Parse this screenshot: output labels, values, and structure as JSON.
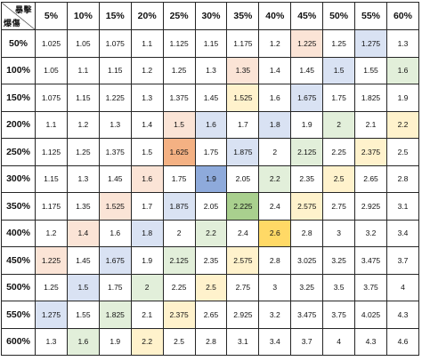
{
  "corner": {
    "top_label": "暴擊",
    "bottom_label": "爆傷"
  },
  "columns": [
    "5%",
    "10%",
    "15%",
    "20%",
    "25%",
    "30%",
    "35%",
    "40%",
    "45%",
    "50%",
    "55%",
    "60%"
  ],
  "colors": {
    "pink": "#fbe4d6",
    "orange": "#f4b183",
    "blue": "#d9e2f3",
    "darkblue": "#8eaadb",
    "green": "#e2efda",
    "darkgreen": "#a9d08e",
    "yellow": "#fff2cc",
    "darkyellow": "#ffd966"
  },
  "rows": [
    {
      "label": "50%",
      "cells": [
        {
          "v": "1.025"
        },
        {
          "v": "1.05"
        },
        {
          "v": "1.075"
        },
        {
          "v": "1.1"
        },
        {
          "v": "1.125"
        },
        {
          "v": "1.15"
        },
        {
          "v": "1.175"
        },
        {
          "v": "1.2"
        },
        {
          "v": "1.225",
          "c": "pink"
        },
        {
          "v": "1.25"
        },
        {
          "v": "1.275",
          "c": "blue"
        },
        {
          "v": "1.3"
        }
      ]
    },
    {
      "label": "100%",
      "cells": [
        {
          "v": "1.05"
        },
        {
          "v": "1.1"
        },
        {
          "v": "1.15"
        },
        {
          "v": "1.2"
        },
        {
          "v": "1.25"
        },
        {
          "v": "1.3"
        },
        {
          "v": "1.35",
          "c": "pink"
        },
        {
          "v": "1.4"
        },
        {
          "v": "1.45"
        },
        {
          "v": "1.5",
          "c": "blue"
        },
        {
          "v": "1.55"
        },
        {
          "v": "1.6",
          "c": "green"
        }
      ]
    },
    {
      "label": "150%",
      "cells": [
        {
          "v": "1.075"
        },
        {
          "v": "1.15"
        },
        {
          "v": "1.225"
        },
        {
          "v": "1.3"
        },
        {
          "v": "1.375"
        },
        {
          "v": "1.45"
        },
        {
          "v": "1.525",
          "c": "yellow"
        },
        {
          "v": "1.6"
        },
        {
          "v": "1.675",
          "c": "blue"
        },
        {
          "v": "1.75"
        },
        {
          "v": "1.825"
        },
        {
          "v": "1.9"
        }
      ]
    },
    {
      "label": "200%",
      "cells": [
        {
          "v": "1.1"
        },
        {
          "v": "1.2"
        },
        {
          "v": "1.3"
        },
        {
          "v": "1.4"
        },
        {
          "v": "1.5",
          "c": "pink"
        },
        {
          "v": "1.6",
          "c": "blue"
        },
        {
          "v": "1.7"
        },
        {
          "v": "1.8",
          "c": "blue"
        },
        {
          "v": "1.9"
        },
        {
          "v": "2",
          "c": "green"
        },
        {
          "v": "2.1"
        },
        {
          "v": "2.2",
          "c": "yellow"
        }
      ]
    },
    {
      "label": "250%",
      "cells": [
        {
          "v": "1.125"
        },
        {
          "v": "1.25"
        },
        {
          "v": "1.375"
        },
        {
          "v": "1.5"
        },
        {
          "v": "1.625",
          "c": "orange"
        },
        {
          "v": "1.75"
        },
        {
          "v": "1.875",
          "c": "blue"
        },
        {
          "v": "2"
        },
        {
          "v": "2.125",
          "c": "green"
        },
        {
          "v": "2.25"
        },
        {
          "v": "2.375",
          "c": "yellow"
        },
        {
          "v": "2.5"
        }
      ]
    },
    {
      "label": "300%",
      "cells": [
        {
          "v": "1.15"
        },
        {
          "v": "1.3"
        },
        {
          "v": "1.45"
        },
        {
          "v": "1.6",
          "c": "pink"
        },
        {
          "v": "1.75"
        },
        {
          "v": "1.9",
          "c": "darkblue"
        },
        {
          "v": "2.05"
        },
        {
          "v": "2.2",
          "c": "green"
        },
        {
          "v": "2.35"
        },
        {
          "v": "2.5",
          "c": "yellow"
        },
        {
          "v": "2.65"
        },
        {
          "v": "2.8"
        }
      ]
    },
    {
      "label": "350%",
      "cells": [
        {
          "v": "1.175"
        },
        {
          "v": "1.35"
        },
        {
          "v": "1.525",
          "c": "pink"
        },
        {
          "v": "1.7"
        },
        {
          "v": "1.875",
          "c": "blue"
        },
        {
          "v": "2.05"
        },
        {
          "v": "2.225",
          "c": "darkgreen"
        },
        {
          "v": "2.4"
        },
        {
          "v": "2.575",
          "c": "yellow"
        },
        {
          "v": "2.75"
        },
        {
          "v": "2.925"
        },
        {
          "v": "3.1"
        }
      ]
    },
    {
      "label": "400%",
      "cells": [
        {
          "v": "1.2"
        },
        {
          "v": "1.4",
          "c": "pink"
        },
        {
          "v": "1.6"
        },
        {
          "v": "1.8",
          "c": "blue"
        },
        {
          "v": "2"
        },
        {
          "v": "2.2",
          "c": "green"
        },
        {
          "v": "2.4"
        },
        {
          "v": "2.6",
          "c": "darkyellow"
        },
        {
          "v": "2.8"
        },
        {
          "v": "3"
        },
        {
          "v": "3.2"
        },
        {
          "v": "3.4"
        }
      ]
    },
    {
      "label": "450%",
      "cells": [
        {
          "v": "1.225",
          "c": "pink"
        },
        {
          "v": "1.45"
        },
        {
          "v": "1.675",
          "c": "blue"
        },
        {
          "v": "1.9"
        },
        {
          "v": "2.125",
          "c": "green"
        },
        {
          "v": "2.35"
        },
        {
          "v": "2.575",
          "c": "yellow"
        },
        {
          "v": "2.8"
        },
        {
          "v": "3.025"
        },
        {
          "v": "3.25"
        },
        {
          "v": "3.475"
        },
        {
          "v": "3.7"
        }
      ]
    },
    {
      "label": "500%",
      "cells": [
        {
          "v": "1.25"
        },
        {
          "v": "1.5",
          "c": "blue"
        },
        {
          "v": "1.75"
        },
        {
          "v": "2",
          "c": "green"
        },
        {
          "v": "2.25"
        },
        {
          "v": "2.5",
          "c": "yellow"
        },
        {
          "v": "2.75"
        },
        {
          "v": "3"
        },
        {
          "v": "3.25"
        },
        {
          "v": "3.5"
        },
        {
          "v": "3.75"
        },
        {
          "v": "4"
        }
      ]
    },
    {
      "label": "550%",
      "cells": [
        {
          "v": "1.275",
          "c": "blue"
        },
        {
          "v": "1.55"
        },
        {
          "v": "1.825",
          "c": "green"
        },
        {
          "v": "2.1"
        },
        {
          "v": "2.375",
          "c": "yellow"
        },
        {
          "v": "2.65"
        },
        {
          "v": "2.925"
        },
        {
          "v": "3.2"
        },
        {
          "v": "3.475"
        },
        {
          "v": "3.75"
        },
        {
          "v": "4.025"
        },
        {
          "v": "4.3"
        }
      ]
    },
    {
      "label": "600%",
      "cells": [
        {
          "v": "1.3"
        },
        {
          "v": "1.6",
          "c": "green"
        },
        {
          "v": "1.9"
        },
        {
          "v": "2.2",
          "c": "yellow"
        },
        {
          "v": "2.5"
        },
        {
          "v": "2.8"
        },
        {
          "v": "3.1"
        },
        {
          "v": "3.4"
        },
        {
          "v": "3.7"
        },
        {
          "v": "4"
        },
        {
          "v": "4.3"
        },
        {
          "v": "4.6"
        }
      ]
    }
  ]
}
